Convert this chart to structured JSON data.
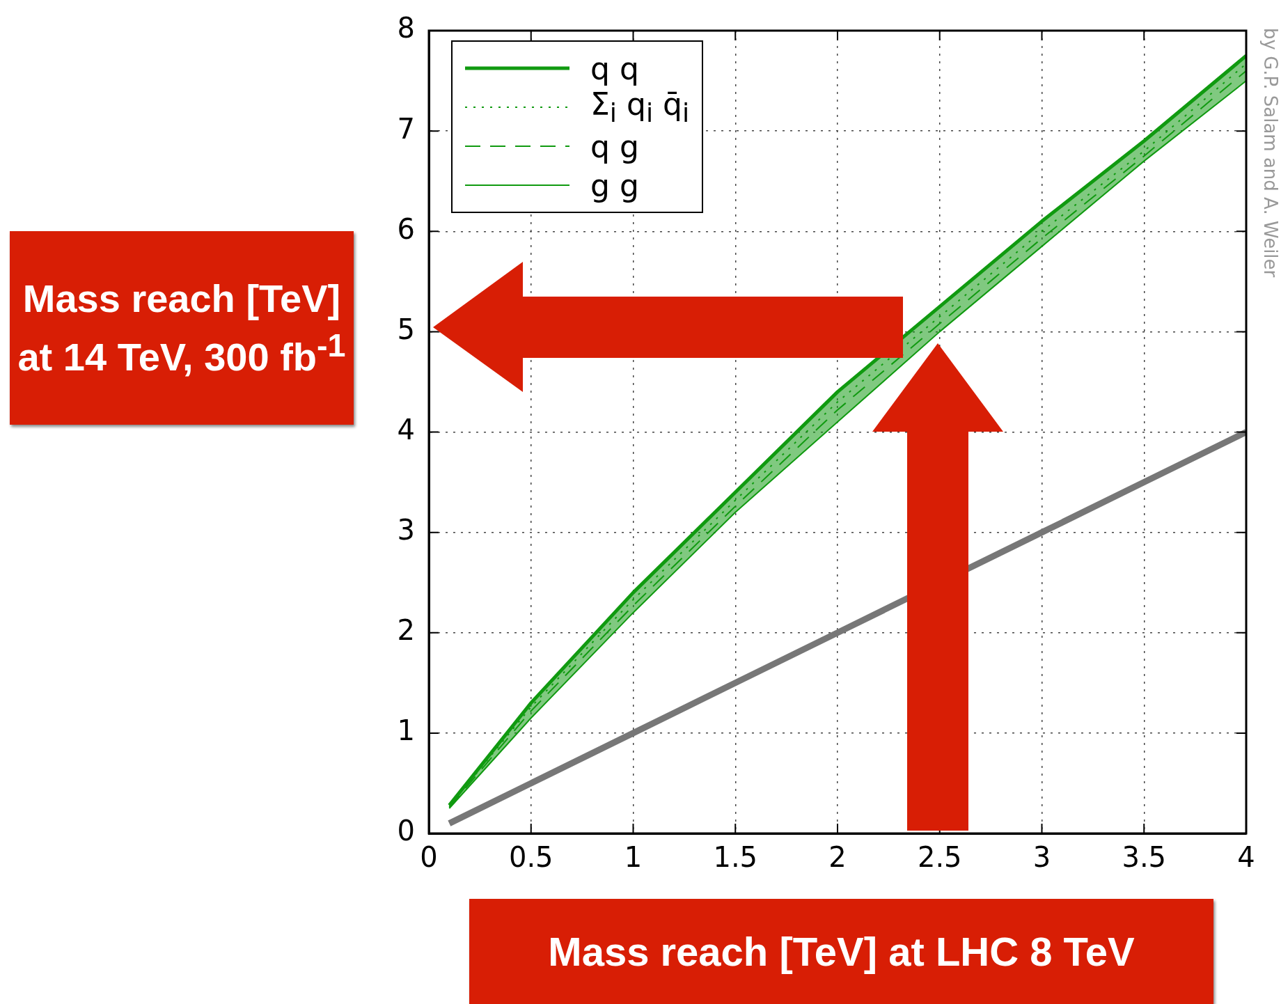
{
  "chart_data": {
    "type": "line",
    "xlabel": "Mass reach [TeV] at LHC 8 TeV",
    "ylabel": "Mass reach [TeV] at 14 TeV, 300 fb$^{-1}$",
    "x": [
      0.1,
      0.5,
      1,
      1.5,
      2,
      2.5,
      3,
      3.5,
      4
    ],
    "series": [
      {
        "name": "q q",
        "color": "#109a10",
        "line_style": "solid",
        "values": [
          0.28,
          1.3,
          2.4,
          3.4,
          4.4,
          5.25,
          6.1,
          6.9,
          7.75
        ]
      },
      {
        "name": "Σ$_{i}$ q$_{i}$ q̄$_{i}$",
        "color": "#109a10",
        "line_style": "dotted",
        "values": [
          0.27,
          1.26,
          2.33,
          3.32,
          4.3,
          5.15,
          6.0,
          6.8,
          7.67
        ]
      },
      {
        "name": "q g",
        "color": "#109a10",
        "line_style": "dashed",
        "values": [
          0.26,
          1.22,
          2.27,
          3.26,
          4.22,
          5.08,
          5.93,
          6.75,
          7.6
        ],
        "lower": [
          0.25,
          1.15,
          2.2,
          3.2,
          4.1,
          5.0,
          5.85,
          6.7,
          7.5
        ],
        "upper": [
          0.28,
          1.3,
          2.4,
          3.4,
          4.4,
          5.25,
          6.1,
          6.9,
          7.75
        ]
      },
      {
        "name": "g g",
        "color": "#109a10",
        "line_style": "solid",
        "values": [
          0.25,
          1.15,
          2.2,
          3.2,
          4.1,
          5.0,
          5.85,
          6.7,
          7.5
        ]
      },
      {
        "color": "#777777",
        "line_style": "solid",
        "values": [
          0.1,
          0.5,
          1,
          1.5,
          2,
          null,
          3,
          3.5,
          4
        ]
      }
    ],
    "xlim": [
      0,
      4
    ],
    "xticks": [
      0,
      0.5,
      1,
      1.5,
      2,
      2.5,
      3,
      3.5,
      4
    ],
    "ylim": [
      0,
      8
    ],
    "yticks": [
      0,
      1,
      2,
      3,
      4,
      5,
      6,
      7,
      8
    ],
    "grid": true,
    "legend": "top left",
    "marker": "none",
    "annotations": [
      "by G.P. Salam and A. Weiler"
    ]
  }
}
